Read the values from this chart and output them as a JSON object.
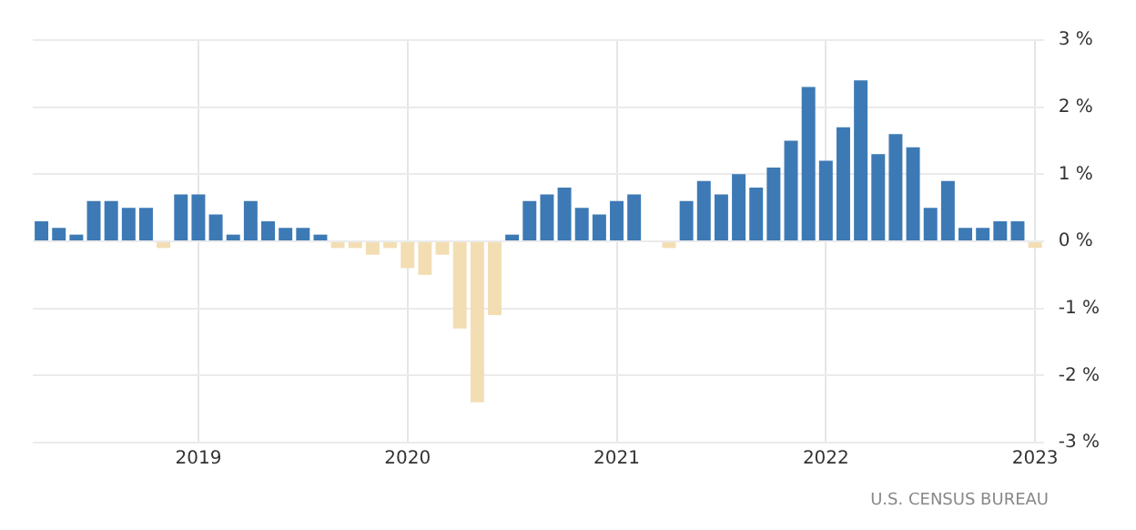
{
  "chart_data": {
    "type": "bar",
    "categories": [
      null,
      null,
      null,
      null,
      null,
      null,
      null,
      null,
      null,
      "2019",
      null,
      null,
      null,
      null,
      null,
      null,
      null,
      null,
      null,
      null,
      null,
      "2020",
      null,
      null,
      null,
      null,
      null,
      null,
      null,
      null,
      null,
      null,
      null,
      "2021",
      null,
      null,
      null,
      null,
      null,
      null,
      null,
      null,
      null,
      null,
      null,
      "2022",
      null,
      null,
      null,
      null,
      null,
      null,
      null,
      null,
      null,
      null,
      null,
      "2023"
    ],
    "values": [
      0.3,
      0.2,
      0.1,
      0.6,
      0.6,
      0.5,
      0.5,
      -0.1,
      0.7,
      0.7,
      0.4,
      0.1,
      0.6,
      0.3,
      0.2,
      0.2,
      0.1,
      -0.1,
      -0.1,
      -0.2,
      -0.1,
      -0.4,
      -0.5,
      -0.2,
      -1.3,
      -2.4,
      -1.1,
      0.1,
      0.6,
      0.7,
      0.8,
      0.5,
      0.4,
      0.6,
      0.7,
      0,
      -0.1,
      0.6,
      0.9,
      0.7,
      1.0,
      0.8,
      1.1,
      1.5,
      2.3,
      1.2,
      1.7,
      2.4,
      1.3,
      1.6,
      1.4,
      0.5,
      0.9,
      0.2,
      0.2,
      0.3,
      0.3,
      -0.1
    ],
    "colors": [
      "#3d7ab5",
      "#3d7ab5",
      "#3d7ab5",
      "#3d7ab5",
      "#3d7ab5",
      "#3d7ab5",
      "#3d7ab5",
      "#f3deb4",
      "#3d7ab5",
      "#3d7ab5",
      "#3d7ab5",
      "#3d7ab5",
      "#3d7ab5",
      "#3d7ab5",
      "#3d7ab5",
      "#3d7ab5",
      "#3d7ab5",
      "#f3deb4",
      "#f3deb4",
      "#f3deb4",
      "#f3deb4",
      "#f3deb4",
      "#f3deb4",
      "#f3deb4",
      "#f3deb4",
      "#f3deb4",
      "#f3deb4",
      "#3d7ab5",
      "#3d7ab5",
      "#3d7ab5",
      "#3d7ab5",
      "#3d7ab5",
      "#3d7ab5",
      "#3d7ab5",
      "#3d7ab5",
      "#3d7ab5",
      "#f3deb4",
      "#3d7ab5",
      "#3d7ab5",
      "#3d7ab5",
      "#3d7ab5",
      "#3d7ab5",
      "#3d7ab5",
      "#3d7ab5",
      "#3d7ab5",
      "#3d7ab5",
      "#3d7ab5",
      "#3d7ab5",
      "#3d7ab5",
      "#3d7ab5",
      "#3d7ab5",
      "#3d7ab5",
      "#3d7ab5",
      "#3d7ab5",
      "#3d7ab5",
      "#3d7ab5",
      "#3d7ab5",
      "#f3deb4"
    ],
    "ylim": [
      -3,
      3
    ],
    "yticks": [
      {
        "value": -3,
        "label": "-3 %"
      },
      {
        "value": -2,
        "label": "-2 %"
      },
      {
        "value": -1,
        "label": "-1 %"
      },
      {
        "value": 0,
        "label": "0 %"
      },
      {
        "value": 1,
        "label": "1 %"
      },
      {
        "value": 2,
        "label": "2 %"
      },
      {
        "value": 3,
        "label": "3 %"
      }
    ],
    "grid": true,
    "annotations": [
      "U.S. CENSUS BUREAU"
    ]
  }
}
